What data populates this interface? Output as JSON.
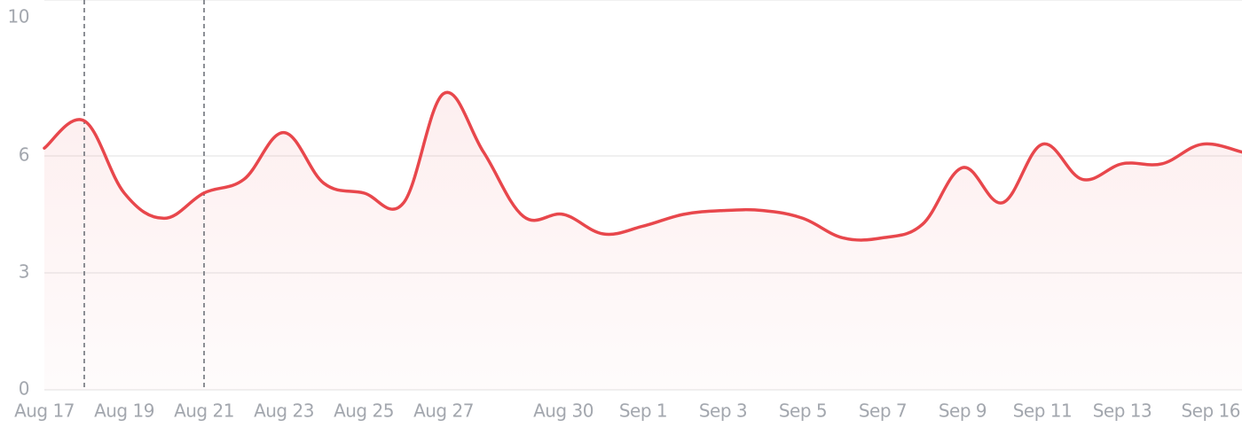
{
  "chart_data": {
    "type": "line",
    "categories": [
      "Aug 17",
      null,
      "Aug 19",
      null,
      "Aug 21",
      null,
      "Aug 23",
      null,
      "Aug 25",
      null,
      "Aug 27",
      null,
      null,
      "Aug 30",
      null,
      "Sep 1",
      null,
      "Sep 3",
      null,
      "Sep 5",
      null,
      "Sep 7",
      null,
      "Sep 9",
      null,
      "Sep 11",
      null,
      "Sep 13",
      null,
      null,
      "Sep 16"
    ],
    "series": [
      {
        "color": "#e8474c",
        "values": [
          6.2,
          6.9,
          5.05,
          4.4,
          5.05,
          5.4,
          6.6,
          5.3,
          5.05,
          4.8,
          7.6,
          6.1,
          4.45,
          4.5,
          4.0,
          4.2,
          4.5,
          4.6,
          4.6,
          4.4,
          3.9,
          3.9,
          4.25,
          5.7,
          4.8,
          6.3,
          5.4,
          5.8,
          5.8,
          6.3,
          6.1
        ]
      }
    ],
    "ylim": [
      0,
      10
    ],
    "yticks": [
      0,
      3,
      6,
      10
    ],
    "grid": true
  }
}
